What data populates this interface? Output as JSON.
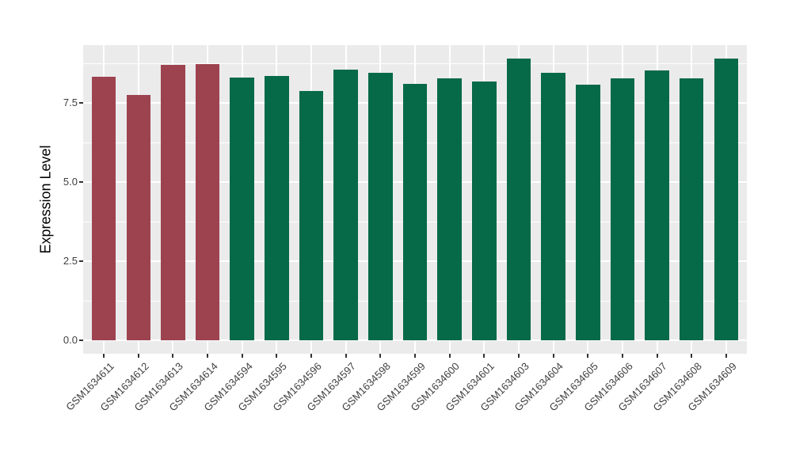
{
  "chart_data": {
    "type": "bar",
    "title": "",
    "xlabel": "",
    "ylabel": "Expression Level",
    "ylim": [
      0,
      9.35
    ],
    "grid": true,
    "legend_position": "none",
    "bar_width_fraction": 0.7,
    "yticks": [
      {
        "value": 0,
        "label": "0.0"
      },
      {
        "value": 2.5,
        "label": "2.5"
      },
      {
        "value": 5,
        "label": "5.0"
      },
      {
        "value": 7.5,
        "label": "7.5"
      }
    ],
    "yminor": [
      1.25,
      3.75,
      6.25,
      8.75
    ],
    "bars": [
      {
        "label": "GSM1634611",
        "value": 8.33,
        "group": "groupA"
      },
      {
        "label": "GSM1634612",
        "value": 7.75,
        "group": "groupA"
      },
      {
        "label": "GSM1634613",
        "value": 8.69,
        "group": "groupA"
      },
      {
        "label": "GSM1634614",
        "value": 8.73,
        "group": "groupA"
      },
      {
        "label": "GSM1634594",
        "value": 8.29,
        "group": "groupB"
      },
      {
        "label": "GSM1634595",
        "value": 8.36,
        "group": "groupB"
      },
      {
        "label": "GSM1634596",
        "value": 7.88,
        "group": "groupB"
      },
      {
        "label": "GSM1634597",
        "value": 8.54,
        "group": "groupB"
      },
      {
        "label": "GSM1634598",
        "value": 8.44,
        "group": "groupB"
      },
      {
        "label": "GSM1634599",
        "value": 8.11,
        "group": "groupB"
      },
      {
        "label": "GSM1634600",
        "value": 8.27,
        "group": "groupB"
      },
      {
        "label": "GSM1634601",
        "value": 8.18,
        "group": "groupB"
      },
      {
        "label": "GSM1634603",
        "value": 8.9,
        "group": "groupB"
      },
      {
        "label": "GSM1634604",
        "value": 8.46,
        "group": "groupB"
      },
      {
        "label": "GSM1634605",
        "value": 8.07,
        "group": "groupB"
      },
      {
        "label": "GSM1634606",
        "value": 8.27,
        "group": "groupB"
      },
      {
        "label": "GSM1634607",
        "value": 8.52,
        "group": "groupB"
      },
      {
        "label": "GSM1634608",
        "value": 8.27,
        "group": "groupB"
      },
      {
        "label": "GSM1634609",
        "value": 8.9,
        "group": "groupB"
      }
    ],
    "group_colors": {
      "groupA": "#9D4350",
      "groupB": "#066948"
    },
    "panel_background": "#EBEBEB",
    "grid_color": "#FFFFFF",
    "axis_text_color": "#404040",
    "axis_title_color": "#000000",
    "tick_mark_color": "#333333"
  }
}
